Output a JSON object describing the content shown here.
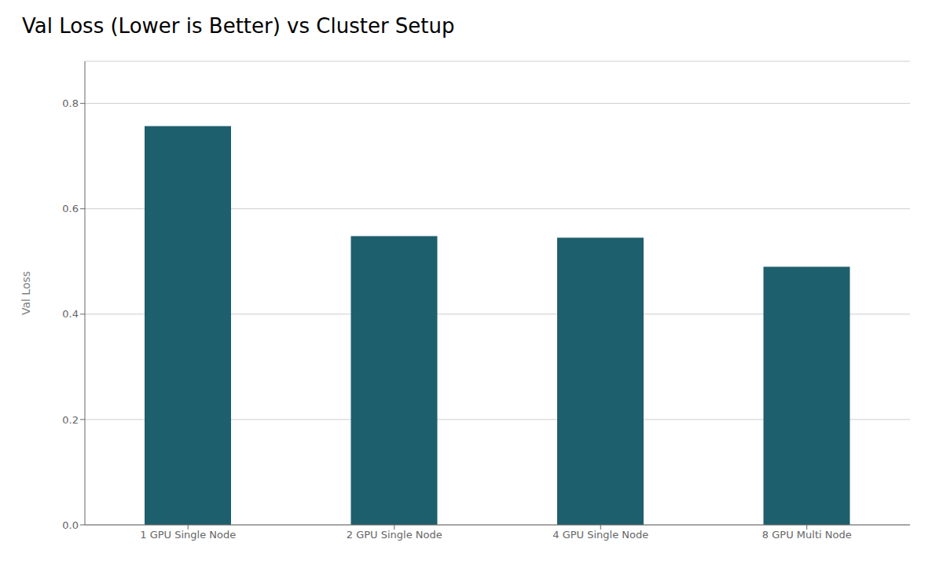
{
  "chart_data": {
    "type": "bar",
    "title": "Val Loss (Lower is Better) vs Cluster Setup",
    "categories": [
      "1 GPU Single Node",
      "2 GPU Single Node",
      "4 GPU Single Node",
      "8 GPU Multi Node"
    ],
    "values": [
      0.757,
      0.548,
      0.545,
      0.49
    ],
    "color": "#1e5f6d",
    "ylabel": "Val Loss",
    "ylim": [
      0,
      0.88
    ],
    "yticks": [
      {
        "value": 0.0,
        "label": "0.0"
      },
      0.2,
      0.4,
      0.6,
      0.8
    ],
    "grid": true
  }
}
